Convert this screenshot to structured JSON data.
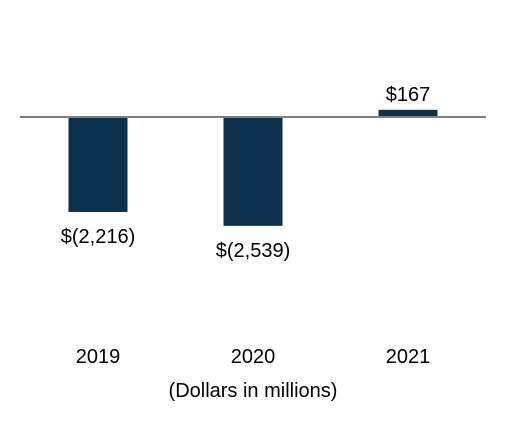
{
  "chart_data": {
    "type": "bar",
    "categories": [
      "2019",
      "2020",
      "2021"
    ],
    "values": [
      -2216,
      -2539,
      167
    ],
    "data_labels": [
      "$(2,216)",
      "$(2,539)",
      "$167"
    ],
    "xlabel": "(Dollars in millions)",
    "ylabel": "",
    "title": "",
    "ylim": [
      -5500,
      1600
    ],
    "grid": false,
    "colors": {
      "bar": "#0d304d",
      "baseline": "#7f7f7f"
    }
  }
}
